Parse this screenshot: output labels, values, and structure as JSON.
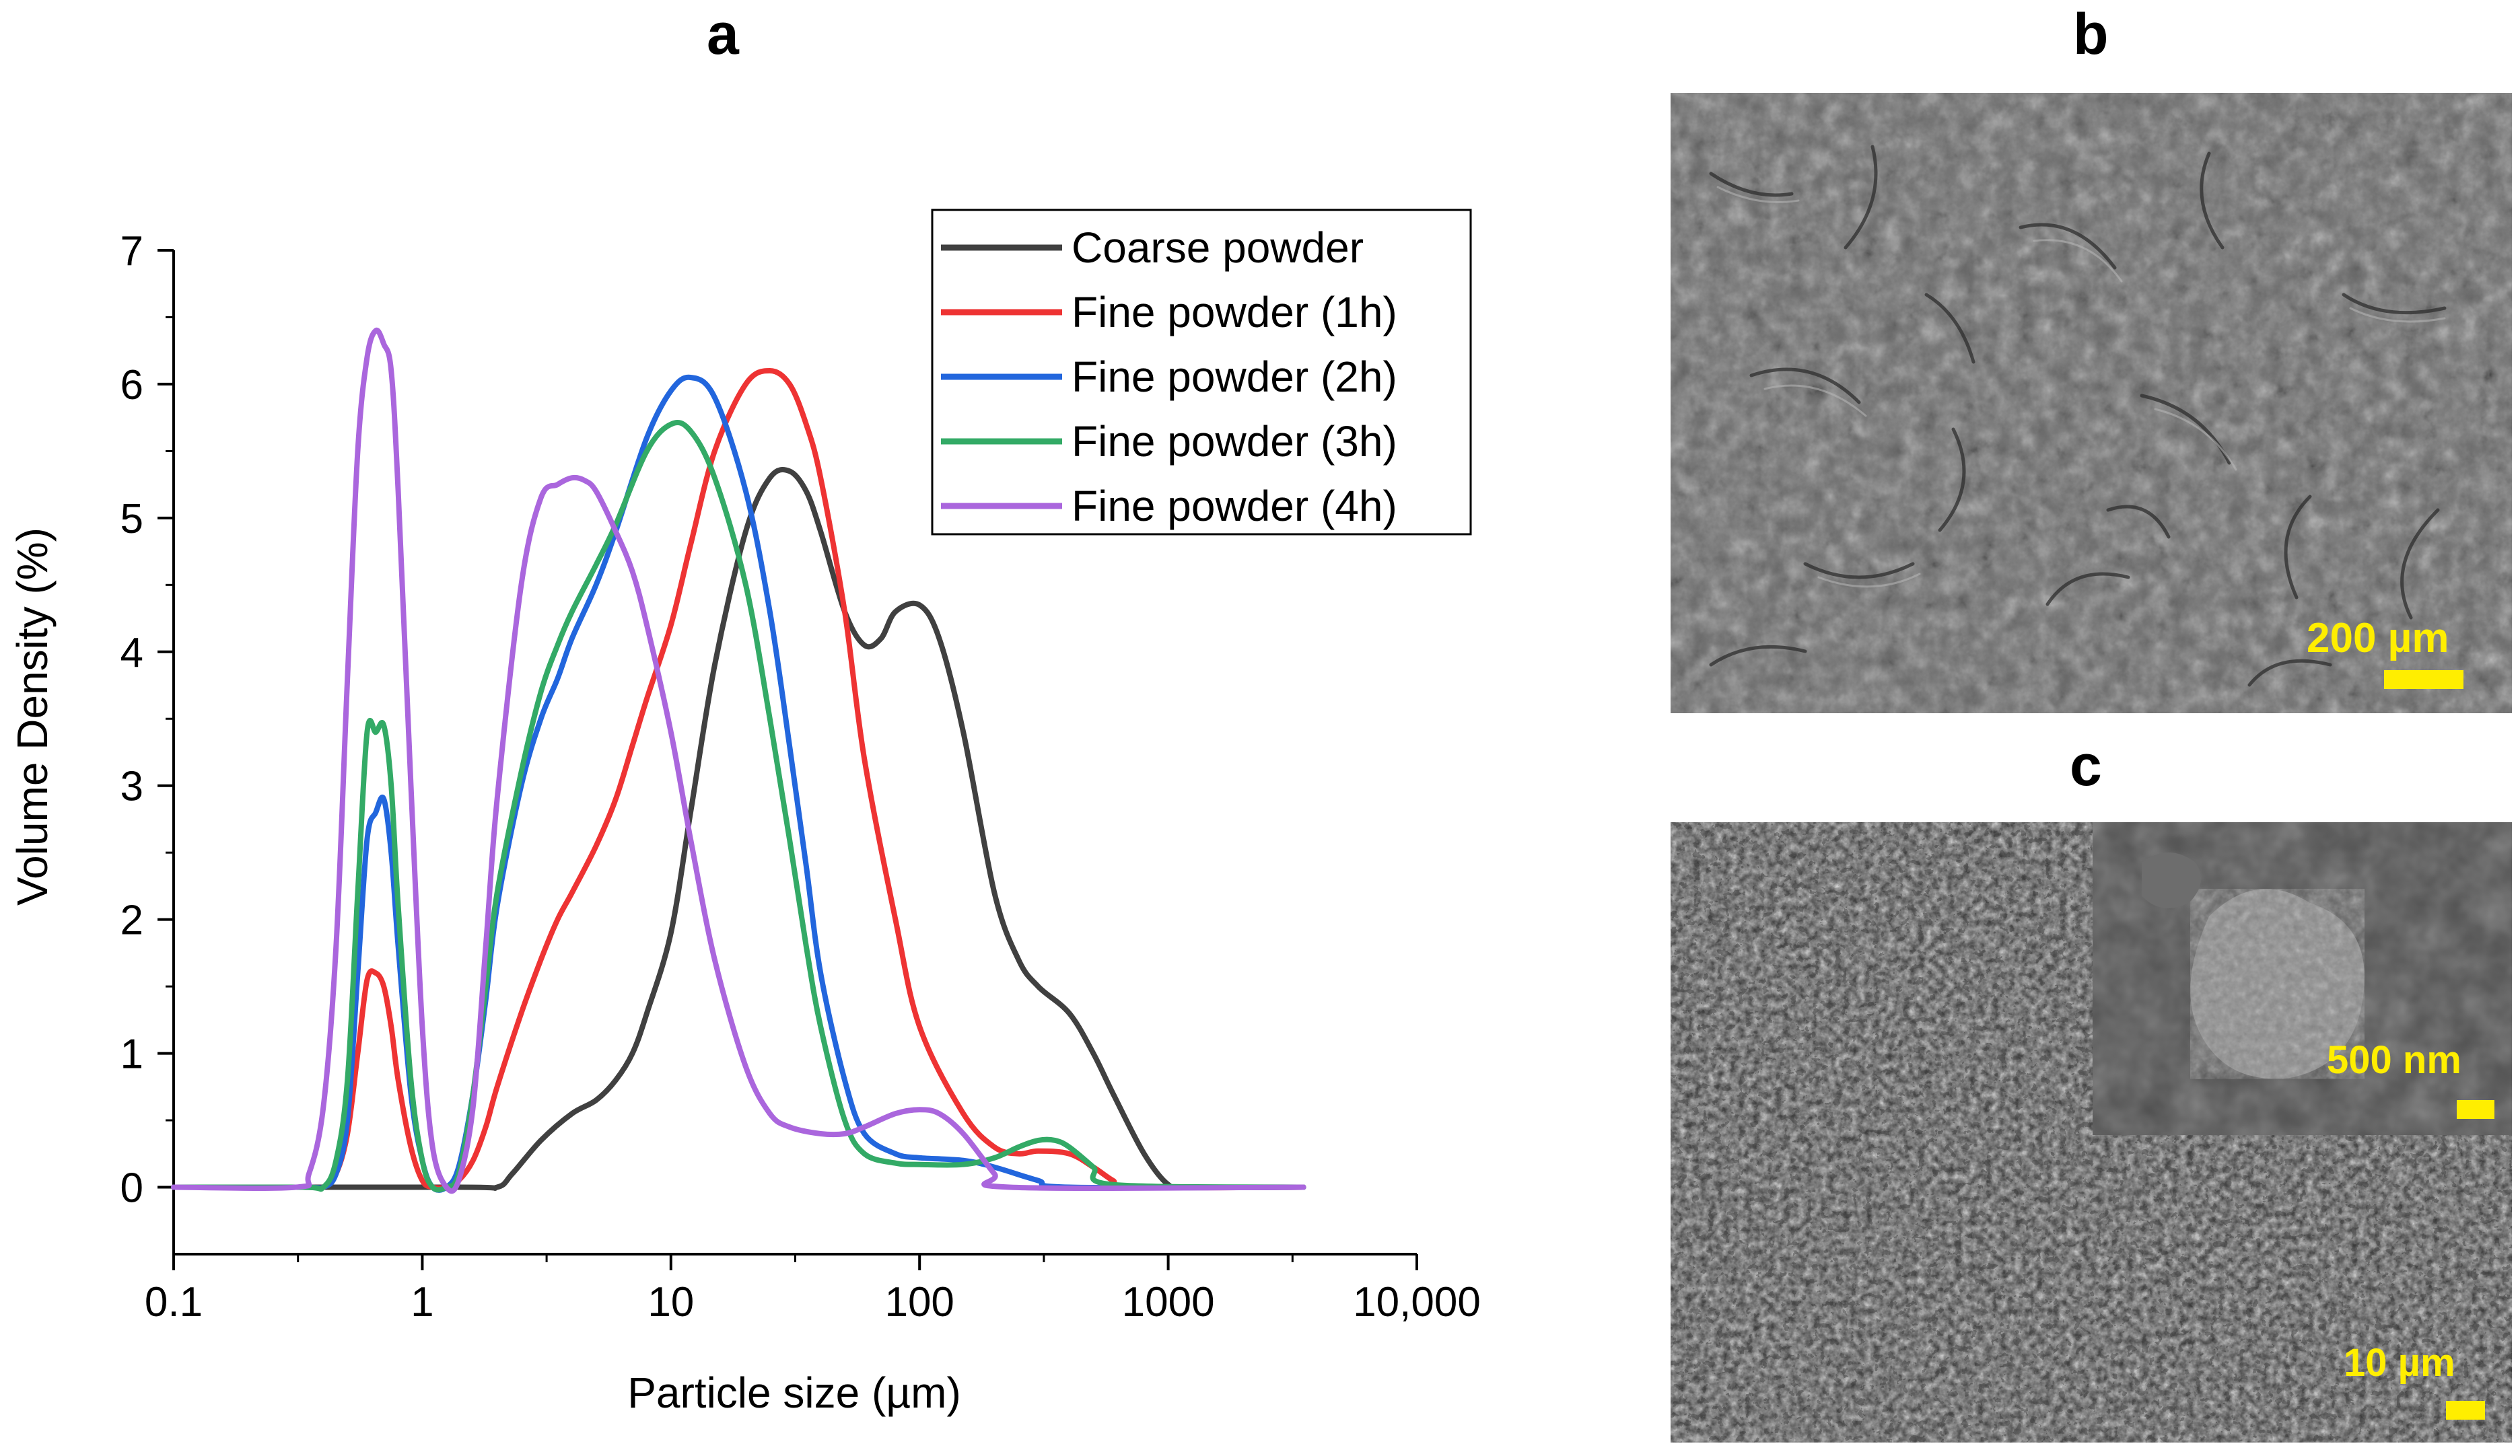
{
  "panels": {
    "a": {
      "label": "a"
    },
    "b": {
      "label": "b",
      "scale_label": "200 µm"
    },
    "c": {
      "label": "c",
      "scale_label": "10 µm",
      "inset_scale_label": "500 nm"
    }
  },
  "chart_data": {
    "type": "line",
    "title": "",
    "xlabel": "Particle size (µm)",
    "ylabel": "Volume Density (%)",
    "x_scale": "log",
    "xlim": [
      0.1,
      10000
    ],
    "ylim": [
      -0.5,
      7
    ],
    "x_ticks": [
      0.1,
      1,
      10,
      100,
      1000,
      10000
    ],
    "x_tick_labels": [
      "0.1",
      "1",
      "10",
      "100",
      "1000",
      "10,000"
    ],
    "y_ticks": [
      0,
      1,
      2,
      3,
      4,
      5,
      6,
      7
    ],
    "y_tick_labels": [
      "0",
      "1",
      "2",
      "3",
      "4",
      "5",
      "6",
      "7"
    ],
    "grid": false,
    "legend_position": "top-right",
    "series": [
      {
        "name": "Coarse powder",
        "color": "#404040",
        "x": [
          0.1,
          1.4,
          2.0,
          2.3,
          3.0,
          4.0,
          5.0,
          6.0,
          7.0,
          8.0,
          10.0,
          12.0,
          15.0,
          20.0,
          25.0,
          30.0,
          35.0,
          40.0,
          50.0,
          60.0,
          70.0,
          80.0,
          100.0,
          120.0,
          150.0,
          200.0,
          250.0,
          300.0,
          400.0,
          500.0,
          600.0,
          800.0,
          1000.0,
          1200.0,
          3500.0
        ],
        "y": [
          0,
          0,
          0,
          0.1,
          0.35,
          0.55,
          0.65,
          0.8,
          1.0,
          1.3,
          1.9,
          2.8,
          3.9,
          4.9,
          5.3,
          5.35,
          5.2,
          4.9,
          4.3,
          4.05,
          4.1,
          4.3,
          4.35,
          4.1,
          3.4,
          2.2,
          1.7,
          1.5,
          1.3,
          1.0,
          0.7,
          0.25,
          0.02,
          0,
          0
        ]
      },
      {
        "name": "Fine powder (1h)",
        "color": "#ee3333",
        "x": [
          0.1,
          0.33,
          0.4,
          0.45,
          0.5,
          0.55,
          0.6,
          0.65,
          0.7,
          0.75,
          0.8,
          0.9,
          1.0,
          1.1,
          1.25,
          1.4,
          1.6,
          1.8,
          2.0,
          2.5,
          3.0,
          3.5,
          4.0,
          5.0,
          6.0,
          7.0,
          8.0,
          10.0,
          12.0,
          15.0,
          20.0,
          25.0,
          30.0,
          35.0,
          40.0,
          50.0,
          60.0,
          80.0,
          100.0,
          150.0,
          200.0,
          250.0,
          300.0,
          400.0,
          500.0,
          600.0,
          700.0,
          3500.0
        ],
        "y": [
          0,
          0,
          0,
          0.1,
          0.4,
          1.0,
          1.55,
          1.6,
          1.5,
          1.2,
          0.8,
          0.3,
          0.05,
          0,
          0,
          0.05,
          0.2,
          0.45,
          0.75,
          1.3,
          1.7,
          2.0,
          2.2,
          2.55,
          2.9,
          3.3,
          3.65,
          4.2,
          4.8,
          5.5,
          6.0,
          6.1,
          6.0,
          5.7,
          5.3,
          4.3,
          3.2,
          2.0,
          1.2,
          0.55,
          0.3,
          0.25,
          0.27,
          0.25,
          0.15,
          0.05,
          0,
          0
        ]
      },
      {
        "name": "Fine powder (2h)",
        "color": "#2266dd",
        "x": [
          0.1,
          0.33,
          0.4,
          0.45,
          0.5,
          0.55,
          0.6,
          0.65,
          0.7,
          0.75,
          0.8,
          0.9,
          1.0,
          1.1,
          1.25,
          1.4,
          1.6,
          1.8,
          2.0,
          2.5,
          3.0,
          3.5,
          4.0,
          5.0,
          6.0,
          8.0,
          10.0,
          12.0,
          15.0,
          20.0,
          25.0,
          30.0,
          35.0,
          40.0,
          50.0,
          60.0,
          80.0,
          100.0,
          150.0,
          200.0,
          300.0,
          400.0,
          3500.0
        ],
        "y": [
          0,
          0,
          0,
          0.1,
          0.5,
          1.6,
          2.6,
          2.8,
          2.9,
          2.5,
          1.8,
          0.7,
          0.2,
          0,
          0,
          0.15,
          0.7,
          1.4,
          2.1,
          3.0,
          3.5,
          3.8,
          4.1,
          4.5,
          4.9,
          5.6,
          5.95,
          6.05,
          5.9,
          5.2,
          4.3,
          3.3,
          2.4,
          1.6,
          0.8,
          0.4,
          0.25,
          0.22,
          0.2,
          0.15,
          0.05,
          0,
          0
        ]
      },
      {
        "name": "Fine powder (3h)",
        "color": "#33aa66",
        "x": [
          0.1,
          0.33,
          0.4,
          0.45,
          0.5,
          0.55,
          0.6,
          0.65,
          0.7,
          0.75,
          0.8,
          0.9,
          1.0,
          1.1,
          1.25,
          1.4,
          1.6,
          1.8,
          2.0,
          2.5,
          3.0,
          3.5,
          4.0,
          5.0,
          6.0,
          8.0,
          10.0,
          12.0,
          15.0,
          20.0,
          25.0,
          30.0,
          35.0,
          40.0,
          50.0,
          60.0,
          80.0,
          100.0,
          150.0,
          200.0,
          250.0,
          300.0,
          350.0,
          400.0,
          500.0,
          600.0,
          3500.0
        ],
        "y": [
          0,
          0,
          0,
          0.2,
          0.8,
          2.2,
          3.4,
          3.4,
          3.45,
          3.0,
          2.1,
          0.8,
          0.2,
          0,
          0,
          0.1,
          0.7,
          1.5,
          2.2,
          3.1,
          3.7,
          4.05,
          4.3,
          4.65,
          4.95,
          5.5,
          5.7,
          5.65,
          5.3,
          4.5,
          3.5,
          2.6,
          1.8,
          1.2,
          0.5,
          0.25,
          0.18,
          0.17,
          0.17,
          0.22,
          0.3,
          0.35,
          0.35,
          0.3,
          0.15,
          0.02,
          0
        ]
      },
      {
        "name": "Fine powder (4h)",
        "color": "#aa66dd",
        "x": [
          0.1,
          0.31,
          0.35,
          0.4,
          0.45,
          0.5,
          0.55,
          0.6,
          0.65,
          0.7,
          0.75,
          0.8,
          0.9,
          1.0,
          1.1,
          1.25,
          1.4,
          1.6,
          1.8,
          2.0,
          2.5,
          3.0,
          3.5,
          4.0,
          4.5,
          5.0,
          6.0,
          7.0,
          8.0,
          10.0,
          12.0,
          15.0,
          20.0,
          25.0,
          30.0,
          40.0,
          50.0,
          60.0,
          80.0,
          100.0,
          120.0,
          150.0,
          200.0,
          230.0,
          3500.0
        ],
        "y": [
          0,
          0,
          0.1,
          0.6,
          1.8,
          3.8,
          5.5,
          6.2,
          6.4,
          6.3,
          6.1,
          5.2,
          3.0,
          1.2,
          0.3,
          0,
          0.05,
          0.6,
          1.8,
          2.9,
          4.5,
          5.15,
          5.25,
          5.3,
          5.28,
          5.2,
          4.9,
          4.6,
          4.2,
          3.4,
          2.6,
          1.7,
          0.9,
          0.55,
          0.45,
          0.4,
          0.4,
          0.45,
          0.55,
          0.58,
          0.55,
          0.4,
          0.1,
          0,
          0
        ]
      }
    ]
  }
}
